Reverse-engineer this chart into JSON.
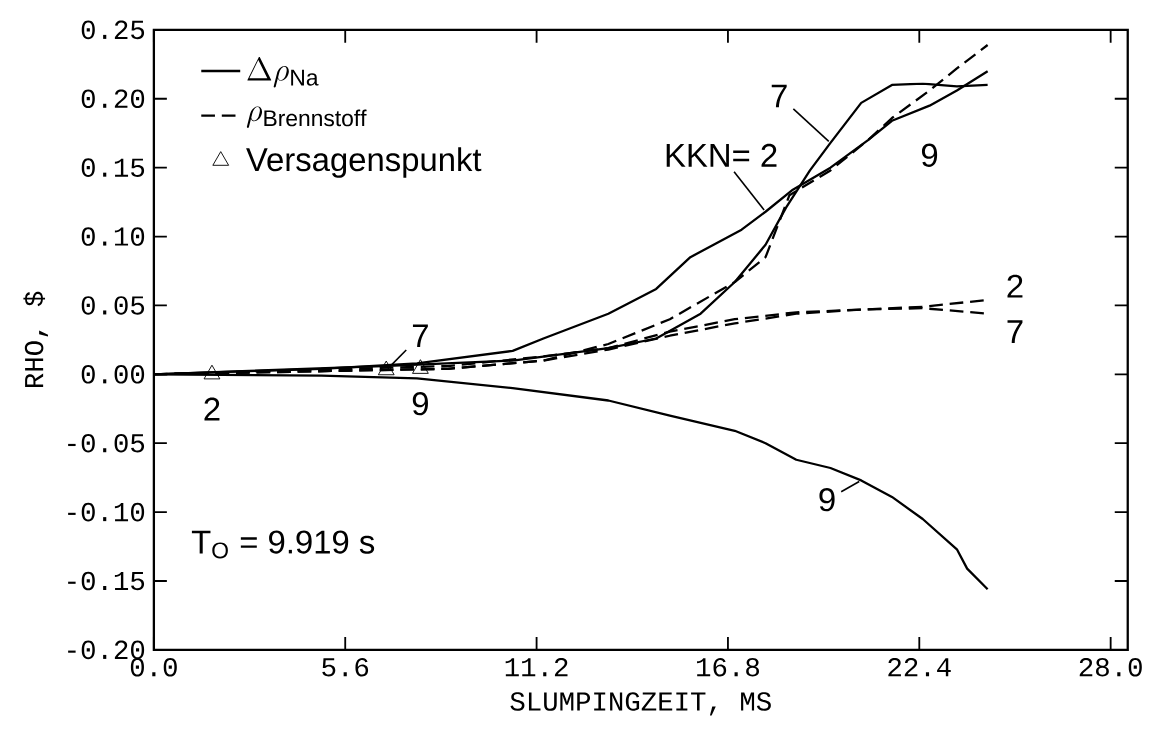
{
  "chart_data": {
    "type": "line",
    "xlabel": "SLUMPINGZEIT, MS",
    "ylabel": "RHO, $",
    "xlim": [
      0,
      28.5
    ],
    "ylim": [
      -0.2,
      0.25
    ],
    "xticks": [
      {
        "value": 0,
        "label": "0.0"
      },
      {
        "value": 5.6,
        "label": "5.6"
      },
      {
        "value": 11.2,
        "label": "11.2"
      },
      {
        "value": 16.8,
        "label": "16.8"
      },
      {
        "value": 22.4,
        "label": "22.4"
      },
      {
        "value": 28.0,
        "label": "28.0"
      }
    ],
    "yticks": [
      {
        "value": -0.2,
        "label": "-0.20"
      },
      {
        "value": -0.15,
        "label": "-0.15"
      },
      {
        "value": -0.1,
        "label": "-0.10"
      },
      {
        "value": -0.05,
        "label": "-0.05"
      },
      {
        "value": 0,
        "label": "0.00"
      },
      {
        "value": 0.05,
        "label": "0.05"
      },
      {
        "value": 0.1,
        "label": "0.10"
      },
      {
        "value": 0.15,
        "label": "0.15"
      },
      {
        "value": 0.2,
        "label": "0.20"
      },
      {
        "value": 0.25,
        "label": "0.25"
      }
    ],
    "legend": "top left",
    "series": [
      {
        "name": "\\Delta\\rho_{\\mathsf{Na}}",
        "line_style": "solid",
        "marker": "none",
        "color": "#000000",
        "x": [
          0,
          4.9,
          7.7,
          10.5,
          11.4,
          13.3,
          14.7,
          15.7,
          17.2,
          17.9,
          18.7,
          19.8,
          20.9,
          21.6,
          22.7,
          23.5,
          24.4
        ],
        "values": [
          0,
          0.004,
          0.008,
          0.017,
          0.026,
          0.044,
          0.062,
          0.085,
          0.105,
          0.118,
          0.134,
          0.15,
          0.17,
          0.184,
          0.195,
          0.206,
          0.22
        ]
      },
      {
        "name": "\\rho_{\\mathsf{Brennstoff}}",
        "line_style": "dashed",
        "marker": "none",
        "color": "#000000",
        "x": [
          0,
          8.6,
          11.4,
          13.3,
          15.1,
          17.0,
          18.8,
          20.7,
          22.5,
          24.4
        ],
        "values": [
          0,
          0.006,
          0.013,
          0.019,
          0.031,
          0.04,
          0.045,
          0.047,
          0.049,
          0.054
        ]
      },
      {
        "name": "Versagenspunkt",
        "type": "scatter",
        "marker": "triangle",
        "color": "#000000",
        "x": [
          1.7,
          6.8,
          7.8
        ],
        "values": [
          0,
          0.003,
          0.004
        ]
      },
      {
        "line_style": "solid",
        "marker": "none",
        "color": "#000000",
        "x": [
          0,
          6.7,
          10.5,
          13.3,
          14.7,
          16.0,
          17.0,
          17.9,
          18.5,
          19.2,
          19.8,
          20.7,
          21.6,
          22.5,
          23.5,
          24.4
        ],
        "values": [
          0,
          0.006,
          0.01,
          0.019,
          0.026,
          0.044,
          0.067,
          0.094,
          0.121,
          0.148,
          0.168,
          0.197,
          0.21,
          0.211,
          0.209,
          0.21
        ]
      },
      {
        "line_style": "solid",
        "marker": "none",
        "color": "#000000",
        "x": [
          0,
          4.9,
          7.7,
          10.5,
          13.3,
          15.1,
          17.0,
          17.9,
          18.8,
          19.8,
          20.7,
          21.6,
          22.5,
          23.5,
          23.8,
          24.4
        ],
        "values": [
          0,
          -0.001,
          -0.003,
          -0.01,
          -0.019,
          -0.03,
          -0.041,
          -0.05,
          -0.062,
          -0.068,
          -0.077,
          -0.089,
          -0.105,
          -0.127,
          -0.141,
          -0.156
        ]
      },
      {
        "line_style": "dashed",
        "marker": "none",
        "color": "#000000",
        "x": [
          0,
          8.6,
          11.4,
          13.3,
          15.1,
          17.0,
          18.8,
          20.7,
          22.5,
          24.4
        ],
        "values": [
          0,
          0.004,
          0.01,
          0.018,
          0.028,
          0.037,
          0.044,
          0.047,
          0.048,
          0.044
        ]
      },
      {
        "line_style": "dashed",
        "marker": "none",
        "color": "#000000",
        "x": [
          0,
          8.6,
          11.4,
          13.3,
          15.1,
          17.0,
          17.9,
          18.6,
          19.8,
          20.9,
          21.6,
          22.7,
          23.5,
          24.4
        ],
        "values": [
          0,
          0.004,
          0.01,
          0.022,
          0.04,
          0.067,
          0.085,
          0.13,
          0.148,
          0.17,
          0.186,
          0.206,
          0.222,
          0.239
        ]
      }
    ],
    "annotations": [
      {
        "text": "7",
        "x": 19.8,
        "y": 0.168
      },
      {
        "text": "KKN= 2",
        "x": 17.9,
        "y": 0.118
      },
      "9",
      "2",
      "7",
      {
        "text": "7",
        "x": 6.8,
        "y": 0.003
      },
      {
        "text": "2",
        "x": 1.7,
        "y": 0
      },
      {
        "text": "9",
        "x": 7.8,
        "y": 0.004
      },
      {
        "text": "9",
        "x": 20.7,
        "y": -0.077
      },
      "T$_{O}$ = 9.919 s"
    ]
  }
}
